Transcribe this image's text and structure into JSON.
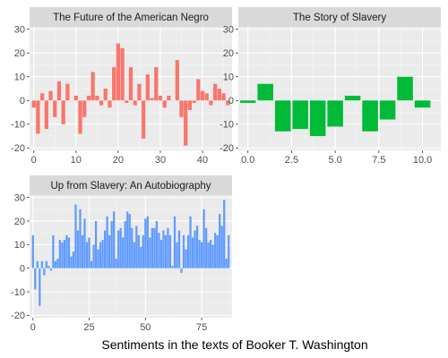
{
  "caption": "Sentiments in the texts of Booker T. Washington",
  "colors": {
    "panel_bg": "#ebebeb",
    "grid_major": "#ffffff",
    "grid_minor": "#f5f5f5",
    "strip_bg": "#d9d9d9",
    "tick": "#333333"
  },
  "chart_data": [
    {
      "type": "bar",
      "title": "The Future of the American Negro",
      "color": "#f8766d",
      "xlim": [
        -1,
        47
      ],
      "ylim": [
        -21,
        31
      ],
      "xticks": [
        0,
        10,
        20,
        30,
        40
      ],
      "xtick_labels": [
        "0",
        "10",
        "20",
        "30",
        "40"
      ],
      "yticks": [
        -20,
        -10,
        0,
        10,
        20,
        30
      ],
      "ytick_labels": [
        "-20",
        "-10",
        "0",
        "10",
        "20",
        "30"
      ],
      "x": [
        0,
        1,
        2,
        3,
        4,
        5,
        6,
        7,
        8,
        9,
        10,
        11,
        12,
        13,
        14,
        15,
        16,
        17,
        18,
        19,
        20,
        21,
        22,
        23,
        24,
        25,
        26,
        27,
        28,
        29,
        30,
        31,
        32,
        33,
        34,
        35,
        36,
        37,
        38,
        39,
        40,
        41,
        42,
        43,
        44,
        45,
        46
      ],
      "values": [
        -3,
        -14,
        3,
        -12,
        4,
        -7,
        8,
        -10,
        7,
        0,
        2,
        -14,
        -7,
        2,
        12,
        2,
        -2,
        5,
        -3,
        14,
        24,
        22,
        -1,
        14,
        -2,
        7,
        -16,
        11,
        1,
        14,
        2,
        -3,
        2,
        0,
        17,
        -7,
        -19,
        -4,
        -1,
        9,
        4,
        3,
        -2,
        7,
        5,
        3,
        -2
      ]
    },
    {
      "type": "bar",
      "title": "The Story of Slavery",
      "color": "#00ba38",
      "xlim": [
        -0.55,
        11.05
      ],
      "ylim": [
        -21,
        31
      ],
      "xticks": [
        0,
        2.5,
        5,
        7.5,
        10
      ],
      "xtick_labels": [
        "0.0",
        "2.5",
        "5.0",
        "7.5",
        "10.0"
      ],
      "yticks": [
        -20,
        -10,
        0,
        10,
        20,
        30
      ],
      "ytick_labels": [
        "-20",
        "-10",
        "0",
        "10",
        "20",
        "30"
      ],
      "x": [
        0,
        1,
        2,
        3,
        4,
        5,
        6,
        7,
        8,
        9,
        10
      ],
      "values": [
        -1,
        7,
        -13,
        -12,
        -15,
        -11,
        2,
        -13,
        -8,
        10,
        -3
      ]
    },
    {
      "type": "bar",
      "title": "Up from Slavery: An Autobiography",
      "color": "#619cff",
      "xlim": [
        -1.5,
        88.5
      ],
      "ylim": [
        -21,
        31
      ],
      "xticks": [
        0,
        25,
        50,
        75
      ],
      "xtick_labels": [
        "0",
        "25",
        "50",
        "75"
      ],
      "yticks": [
        -20,
        -10,
        0,
        10,
        20,
        30
      ],
      "ytick_labels": [
        "-20",
        "-10",
        "0",
        "10",
        "20",
        "30"
      ],
      "x": [
        0,
        1,
        2,
        3,
        4,
        5,
        6,
        7,
        8,
        9,
        10,
        11,
        12,
        13,
        14,
        15,
        16,
        17,
        18,
        19,
        20,
        21,
        22,
        23,
        24,
        25,
        26,
        27,
        28,
        29,
        30,
        31,
        32,
        33,
        34,
        35,
        36,
        37,
        38,
        39,
        40,
        41,
        42,
        43,
        44,
        45,
        46,
        47,
        48,
        49,
        50,
        51,
        52,
        53,
        54,
        55,
        56,
        57,
        58,
        59,
        60,
        61,
        62,
        63,
        64,
        65,
        66,
        67,
        68,
        69,
        70,
        71,
        72,
        73,
        74,
        75,
        76,
        77,
        78,
        79,
        80,
        81,
        82,
        83,
        84,
        85,
        86,
        87
      ],
      "values": [
        14,
        -9,
        3,
        -16,
        3,
        -3,
        3,
        1,
        -1,
        14,
        3,
        4,
        12,
        11,
        12,
        14,
        13,
        5,
        7,
        27,
        16,
        25,
        14,
        21,
        11,
        13,
        3,
        10,
        20,
        8,
        11,
        12,
        16,
        22,
        14,
        20,
        24,
        4,
        16,
        17,
        13,
        20,
        24,
        23,
        17,
        11,
        18,
        14,
        9,
        14,
        21,
        22,
        13,
        17,
        17,
        20,
        15,
        12,
        16,
        14,
        17,
        14,
        1,
        22,
        11,
        16,
        -2,
        14,
        8,
        14,
        22,
        13,
        16,
        18,
        12,
        11,
        25,
        17,
        11,
        12,
        10,
        15,
        14,
        23,
        18,
        29,
        4,
        14
      ]
    }
  ]
}
